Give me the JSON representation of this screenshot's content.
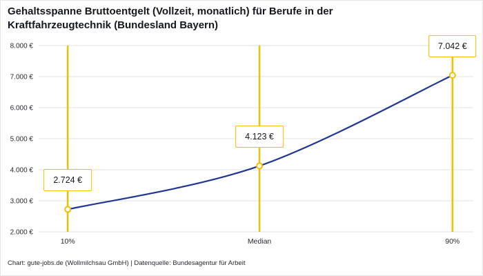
{
  "title": "Gehaltsspanne Bruttoentgelt (Vollzeit, monatlich) für Berufe in der Kraftfahrzeugtechnik (Bundesland Bayern)",
  "footer": "Chart: gute-jobs.de (Wollmilchsau GmbH) | Datenquelle: Bundesagentur für Arbeit",
  "chart_data": {
    "type": "line",
    "title": "Gehaltsspanne Bruttoentgelt (Vollzeit, monatlich) für Berufe in der Kraftfahrzeugtechnik (Bundesland Bayern)",
    "categories": [
      "10%",
      "Median",
      "90%"
    ],
    "values": [
      2724,
      4123,
      7042
    ],
    "labels": [
      "2.724 €",
      "4.123 €",
      "7.042 €"
    ],
    "ylim": [
      2000,
      8000
    ],
    "ytick_step": 1000,
    "ytick_labels": [
      "2.000 €",
      "3.000 €",
      "4.000 €",
      "5.000 €",
      "6.000 €",
      "7.000 €",
      "8.000 €"
    ],
    "xlabel": "",
    "ylabel": "",
    "grid": "horizontal",
    "legend": "none",
    "colors": {
      "line": "#1f3695",
      "highlight": "#f0c000",
      "grid": "#e0e0e0",
      "marker_fill": "#ffffff",
      "text": "#26292e"
    }
  }
}
